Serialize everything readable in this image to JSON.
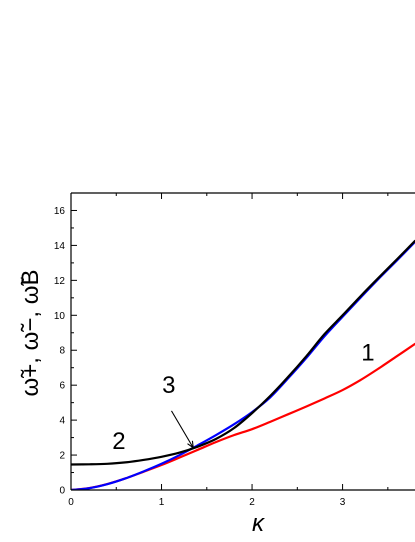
{
  "chart_data": {
    "type": "line",
    "title": "",
    "xlabel": "κ",
    "ylabel": "ω̃+, ω̃−, ω̃B",
    "xlim": [
      0,
      3.8
    ],
    "ylim": [
      0,
      17
    ],
    "x_ticks": [
      0,
      1,
      2,
      3
    ],
    "y_ticks": [
      0,
      2,
      4,
      6,
      8,
      10,
      12,
      14,
      16
    ],
    "x_tick_labels": [
      "0",
      "1",
      "2",
      "3"
    ],
    "y_tick_labels": [
      "0",
      "2",
      "4",
      "6",
      "8",
      "10",
      "12",
      "14",
      "16"
    ],
    "grid": false,
    "legend": false,
    "series": [
      {
        "label": "1",
        "color": "#ff0000",
        "points": [
          [
            0.0,
            0.0
          ],
          [
            0.2,
            0.11
          ],
          [
            0.4,
            0.34
          ],
          [
            0.6,
            0.66
          ],
          [
            0.8,
            1.04
          ],
          [
            1.0,
            1.43
          ],
          [
            1.2,
            1.86
          ],
          [
            1.4,
            2.3
          ],
          [
            1.6,
            2.74
          ],
          [
            1.8,
            3.14
          ],
          [
            2.0,
            3.48
          ],
          [
            2.2,
            3.9
          ],
          [
            2.4,
            4.34
          ],
          [
            2.6,
            4.78
          ],
          [
            2.8,
            5.24
          ],
          [
            3.0,
            5.72
          ],
          [
            3.2,
            6.3
          ],
          [
            3.4,
            6.96
          ],
          [
            3.6,
            7.66
          ],
          [
            3.8,
            8.36
          ]
        ]
      },
      {
        "label": "2",
        "color": "#000000",
        "points": [
          [
            0.0,
            1.46
          ],
          [
            0.2,
            1.47
          ],
          [
            0.4,
            1.5
          ],
          [
            0.6,
            1.58
          ],
          [
            0.8,
            1.72
          ],
          [
            1.0,
            1.9
          ],
          [
            1.2,
            2.14
          ],
          [
            1.4,
            2.48
          ],
          [
            1.6,
            2.92
          ],
          [
            1.8,
            3.54
          ],
          [
            2.0,
            4.4
          ],
          [
            2.2,
            5.38
          ],
          [
            2.4,
            6.48
          ],
          [
            2.6,
            7.66
          ],
          [
            2.8,
            8.92
          ],
          [
            3.0,
            10.0
          ],
          [
            3.2,
            11.1
          ],
          [
            3.4,
            12.16
          ],
          [
            3.6,
            13.2
          ],
          [
            3.8,
            14.26
          ]
        ]
      },
      {
        "label": "3",
        "color": "#0000ff",
        "points": [
          [
            0.0,
            0.0
          ],
          [
            0.2,
            0.1
          ],
          [
            0.4,
            0.33
          ],
          [
            0.6,
            0.66
          ],
          [
            0.8,
            1.06
          ],
          [
            1.0,
            1.5
          ],
          [
            1.2,
            2.0
          ],
          [
            1.4,
            2.56
          ],
          [
            1.6,
            3.14
          ],
          [
            1.8,
            3.76
          ],
          [
            2.0,
            4.46
          ],
          [
            2.2,
            5.3
          ],
          [
            2.4,
            6.4
          ],
          [
            2.6,
            7.56
          ],
          [
            2.8,
            8.8
          ],
          [
            3.0,
            9.92
          ],
          [
            3.2,
            11.02
          ],
          [
            3.4,
            12.1
          ],
          [
            3.6,
            13.14
          ],
          [
            3.8,
            14.2
          ]
        ]
      }
    ],
    "annotations": [
      {
        "text": "1",
        "target_series": "1"
      },
      {
        "text": "2",
        "target_series": "2"
      },
      {
        "text": "3",
        "target_series": "3",
        "arrow_target": [
          1.35,
          2.42
        ]
      }
    ]
  }
}
